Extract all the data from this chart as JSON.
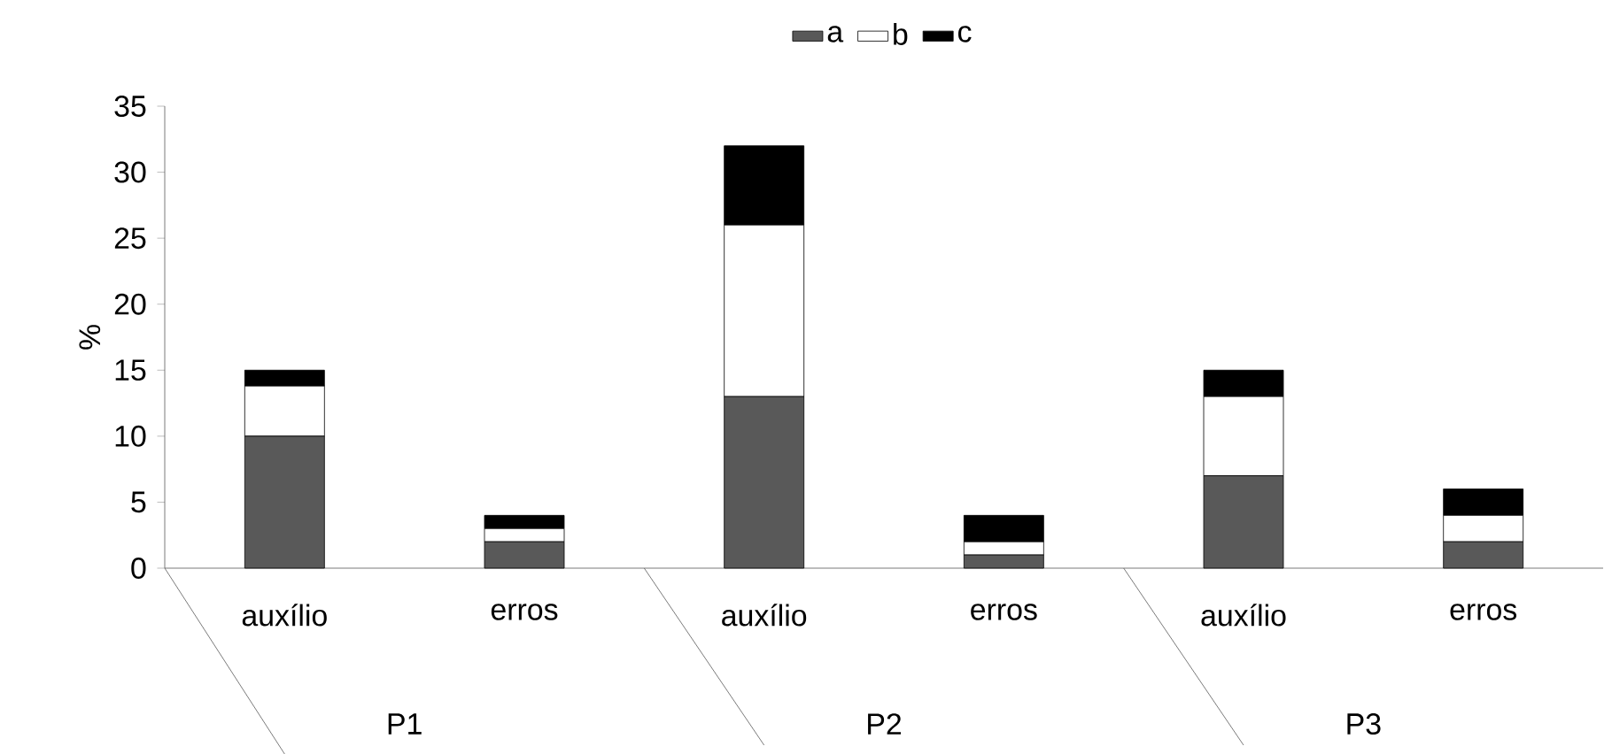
{
  "chart_data": {
    "type": "bar",
    "stacked": true,
    "ylabel": "%",
    "categories": [
      "auxílio",
      "erros",
      "auxílio",
      "erros",
      "auxílio",
      "erros"
    ],
    "series": [
      {
        "name": "a",
        "color": "#595959",
        "values": [
          10,
          2,
          13,
          1,
          7,
          2
        ]
      },
      {
        "name": "b",
        "color": "#ffffff",
        "values": [
          3.8,
          1,
          13,
          1,
          6,
          2
        ]
      },
      {
        "name": "c",
        "color": "#000000",
        "values": [
          1.2,
          1,
          6,
          2,
          2,
          2
        ]
      }
    ],
    "annotations": [
      "P1",
      "P2",
      "P3"
    ],
    "ylim": [
      0,
      35
    ],
    "yticks": [
      0,
      5,
      10,
      15,
      20,
      25,
      30,
      35
    ],
    "legend": "top"
  }
}
